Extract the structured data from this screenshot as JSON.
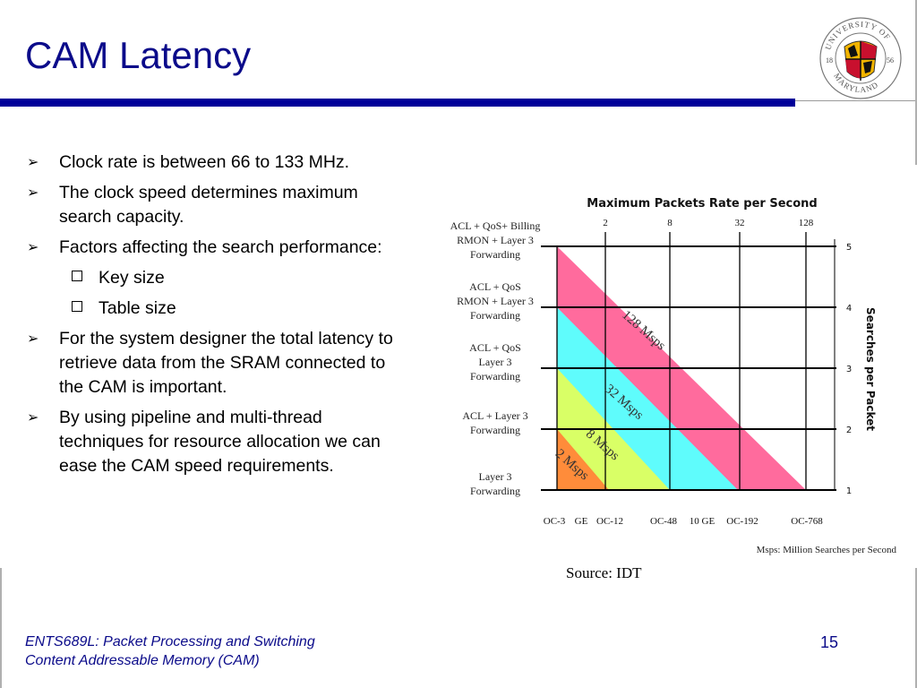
{
  "slide": {
    "title": "CAM Latency",
    "bullets": [
      {
        "level": 1,
        "text": "Clock rate is between 66 to 133 MHz."
      },
      {
        "level": 1,
        "text": "The clock speed determines maximum search capacity."
      },
      {
        "level": 1,
        "text": "Factors affecting the search performance:"
      },
      {
        "level": 2,
        "text": "Key size"
      },
      {
        "level": 2,
        "text": "Table size"
      },
      {
        "level": 1,
        "text": "For the system designer the total latency to retrieve data from the SRAM connected to the CAM is important."
      },
      {
        "level": 1,
        "text": "By using pipeline and multi-thread techniques for resource allocation we can ease the CAM speed requirements."
      }
    ],
    "source": "Source: IDT",
    "footer_line1": "ENTS689L: Packet Processing and Switching",
    "footer_line2": "Content Addressable Memory (CAM)",
    "page_number": "15",
    "logo": {
      "top_text": "UNIVERSITY OF",
      "bottom_text": "MARYLAND",
      "year_left": "18",
      "year_right": "56"
    },
    "colors": {
      "title": "#0b0b8a",
      "rule": "#000099",
      "band_128": "#ff6b9d",
      "band_32": "#5ffcfc",
      "band_8": "#d9ff66",
      "band_2": "#ff8c3a"
    }
  },
  "chart_data": {
    "type": "area",
    "title": "Maximum Packets Rate per Second",
    "top_ticks": [
      "2",
      "8",
      "32",
      "128"
    ],
    "x_ticks": [
      "OC-3",
      "GE",
      "OC-12",
      "OC-48",
      "10 GE",
      "OC-192",
      "OC-768"
    ],
    "y_left_labels": [
      [
        "Layer 3",
        "Forwarding"
      ],
      [
        "ACL + Layer 3",
        "Forwarding"
      ],
      [
        "ACL + QoS",
        "Layer 3",
        "Forwarding"
      ],
      [
        "ACL + QoS",
        "RMON + Layer 3",
        "Forwarding"
      ],
      [
        "ACL + QoS+ Billing",
        "RMON + Layer 3",
        "Forwarding"
      ]
    ],
    "y_right_ticks": [
      "1",
      "2",
      "3",
      "4",
      "5"
    ],
    "ylabel": "Searches per Packet",
    "ylim": [
      1,
      5
    ],
    "series": [
      {
        "name": "128 Msps",
        "color": "#ff6b9d"
      },
      {
        "name": "32 Msps",
        "color": "#5ffcfc"
      },
      {
        "name": "8 Msps",
        "color": "#d9ff66"
      },
      {
        "name": "2 Msps",
        "color": "#ff8c3a"
      }
    ],
    "note": "Msps: Million Searches per Second"
  }
}
